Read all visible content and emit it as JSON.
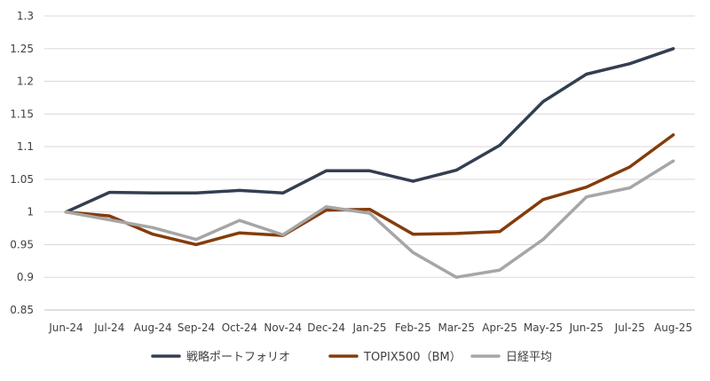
{
  "chart_data": {
    "type": "line",
    "title": "",
    "xlabel": "",
    "ylabel": "",
    "categories": [
      "Jun-24",
      "Jul-24",
      "Aug-24",
      "Sep-24",
      "Oct-24",
      "Nov-24",
      "Dec-24",
      "Jan-25",
      "Feb-25",
      "Mar-25",
      "Apr-25",
      "May-25",
      "Jun-25",
      "Jul-25",
      "Aug-25"
    ],
    "yticks": [
      "0.85",
      "0.9",
      "0.95",
      "1",
      "1.05",
      "1.1",
      "1.15",
      "1.2",
      "1.25",
      "1.3"
    ],
    "ylim": [
      0.85,
      1.3
    ],
    "grid": "horizontal",
    "legend_position": "bottom",
    "series": [
      {
        "name": "戦略ポートフォリオ",
        "color": "#333f50",
        "values": [
          1.0,
          1.03,
          1.029,
          1.029,
          1.033,
          1.029,
          1.063,
          1.063,
          1.047,
          1.064,
          1.102,
          1.169,
          1.211,
          1.227,
          1.25
        ]
      },
      {
        "name": "TOPIX500（BM）",
        "color": "#843c0c",
        "values": [
          1.0,
          0.994,
          0.966,
          0.95,
          0.968,
          0.964,
          1.003,
          1.004,
          0.966,
          0.967,
          0.97,
          1.019,
          1.038,
          1.069,
          1.118
        ]
      },
      {
        "name": "日経平均",
        "color": "#a6a6a6",
        "values": [
          1.0,
          0.988,
          0.976,
          0.958,
          0.987,
          0.965,
          1.008,
          0.998,
          0.938,
          0.9,
          0.911,
          0.958,
          1.023,
          1.037,
          1.078
        ]
      }
    ]
  }
}
